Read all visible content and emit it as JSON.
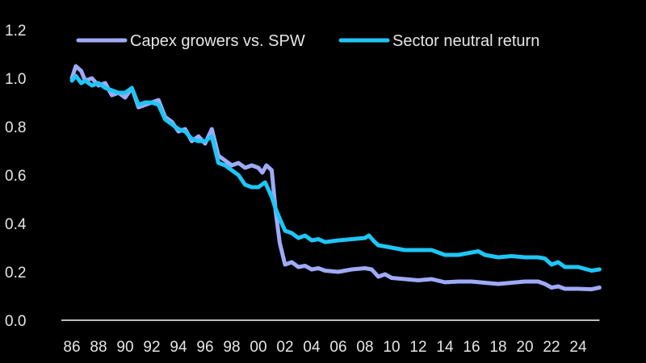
{
  "chart_data": {
    "type": "line",
    "title": "",
    "xlabel": "",
    "ylabel": "",
    "ylim": [
      0.0,
      1.2
    ],
    "yticks": [
      "0.0",
      "0.2",
      "0.4",
      "0.6",
      "0.8",
      "1.0",
      "1.2"
    ],
    "xlim": [
      1986,
      2025.6
    ],
    "xticks": [
      "86",
      "88",
      "90",
      "92",
      "94",
      "96",
      "98",
      "00",
      "02",
      "04",
      "06",
      "08",
      "10",
      "12",
      "14",
      "16",
      "18",
      "20",
      "22",
      "24"
    ],
    "grid": false,
    "legend_position": "top",
    "series": [
      {
        "name": "Capex growers vs. SPW",
        "color": "#9faaf7",
        "x": [
          1986,
          1986.3,
          1986.7,
          1987,
          1987.5,
          1988,
          1988.5,
          1989,
          1989.5,
          1990,
          1990.5,
          1991,
          1991.5,
          1992,
          1992.5,
          1993,
          1993.5,
          1994,
          1994.5,
          1995,
          1995.5,
          1996,
          1996.5,
          1997,
          1997.5,
          1998,
          1998.5,
          1999,
          1999.5,
          2000,
          2000.3,
          2000.6,
          2001,
          2001.3,
          2001.6,
          2002,
          2002.5,
          2003,
          2003.5,
          2004,
          2004.5,
          2005,
          2006,
          2007,
          2008,
          2008.5,
          2009,
          2009.5,
          2010,
          2011,
          2012,
          2013,
          2014,
          2015,
          2016,
          2017,
          2018,
          2019,
          2020,
          2021,
          2021.5,
          2022,
          2022.5,
          2023,
          2024,
          2025,
          2025.6
        ],
        "y": [
          1.0,
          1.05,
          1.03,
          0.99,
          1.0,
          0.97,
          0.98,
          0.93,
          0.94,
          0.92,
          0.96,
          0.88,
          0.89,
          0.9,
          0.91,
          0.84,
          0.82,
          0.78,
          0.79,
          0.74,
          0.76,
          0.73,
          0.79,
          0.68,
          0.66,
          0.64,
          0.65,
          0.63,
          0.64,
          0.63,
          0.61,
          0.64,
          0.62,
          0.45,
          0.32,
          0.23,
          0.24,
          0.22,
          0.225,
          0.21,
          0.215,
          0.205,
          0.2,
          0.21,
          0.215,
          0.21,
          0.18,
          0.19,
          0.175,
          0.17,
          0.165,
          0.17,
          0.157,
          0.16,
          0.16,
          0.155,
          0.15,
          0.155,
          0.16,
          0.16,
          0.15,
          0.135,
          0.14,
          0.13,
          0.13,
          0.128,
          0.135
        ]
      },
      {
        "name": "Sector neutral return",
        "color": "#1ec6f5",
        "x": [
          1986,
          1986.3,
          1986.7,
          1987,
          1987.5,
          1988,
          1988.5,
          1989,
          1989.5,
          1990,
          1990.5,
          1991,
          1991.5,
          1992,
          1992.5,
          1993,
          1993.5,
          1994,
          1994.5,
          1995,
          1995.5,
          1996,
          1996.5,
          1997,
          1997.5,
          1998,
          1998.5,
          1999,
          1999.5,
          2000,
          2000.5,
          2001,
          2001.3,
          2001.6,
          2002,
          2002.5,
          2003,
          2003.5,
          2004,
          2004.5,
          2005,
          2006,
          2007,
          2008,
          2008.3,
          2008.7,
          2009,
          2009.5,
          2010,
          2011,
          2012,
          2013,
          2014,
          2015,
          2016,
          2016.5,
          2017,
          2018,
          2019,
          2020,
          2021,
          2021.5,
          2022,
          2022.5,
          2023,
          2024,
          2025,
          2025.6
        ],
        "y": [
          0.99,
          1.01,
          0.98,
          0.99,
          0.97,
          0.98,
          0.96,
          0.95,
          0.94,
          0.94,
          0.96,
          0.89,
          0.9,
          0.9,
          0.89,
          0.83,
          0.81,
          0.79,
          0.78,
          0.75,
          0.74,
          0.74,
          0.76,
          0.65,
          0.64,
          0.62,
          0.6,
          0.56,
          0.55,
          0.55,
          0.57,
          0.51,
          0.46,
          0.42,
          0.37,
          0.36,
          0.34,
          0.35,
          0.33,
          0.335,
          0.323,
          0.33,
          0.335,
          0.34,
          0.35,
          0.325,
          0.31,
          0.305,
          0.3,
          0.29,
          0.29,
          0.29,
          0.27,
          0.27,
          0.28,
          0.285,
          0.27,
          0.26,
          0.265,
          0.26,
          0.26,
          0.255,
          0.23,
          0.24,
          0.22,
          0.22,
          0.205,
          0.21
        ]
      }
    ]
  }
}
